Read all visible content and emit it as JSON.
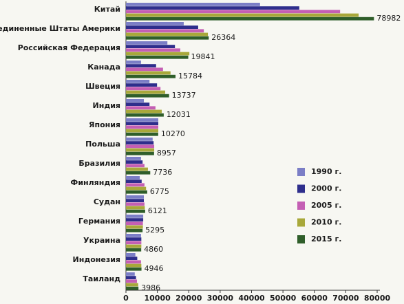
{
  "chart_data": {
    "type": "bar",
    "orientation": "horizontal",
    "categories": [
      "Китай",
      "Соединенные Штаты Америки",
      "Российская Федерация",
      "Канада",
      "Швеция",
      "Индия",
      "Япония",
      "Польша",
      "Бразилия",
      "Финляндия",
      "Судан",
      "Германия",
      "Украина",
      "Индонезия",
      "Таиланд"
    ],
    "series": [
      {
        "name": "1990 г.",
        "color": "#7b7ec6",
        "values": [
          42700,
          18400,
          13200,
          4800,
          7500,
          5700,
          10300,
          8500,
          4800,
          4400,
          5700,
          5500,
          4800,
          3000,
          2800
        ]
      },
      {
        "name": "2000 г.",
        "color": "#2e2e8c",
        "values": [
          55200,
          23000,
          15600,
          9600,
          9900,
          7500,
          10300,
          8800,
          5300,
          5000,
          5700,
          5500,
          4900,
          3600,
          3200
        ]
      },
      {
        "name": "2005 г.",
        "color": "#c45fb4",
        "values": [
          68200,
          24800,
          17300,
          11800,
          11000,
          9400,
          10300,
          9000,
          5900,
          5900,
          5900,
          5400,
          4900,
          4800,
          3500
        ]
      },
      {
        "name": "2010 г.",
        "color": "#a8a83a",
        "values": [
          74100,
          26100,
          20200,
          14200,
          12500,
          11400,
          10300,
          9000,
          7000,
          6400,
          6000,
          5400,
          4900,
          4900,
          3900
        ]
      },
      {
        "name": "2015 г.",
        "color": "#2f5e2a",
        "values": [
          78982,
          26364,
          19841,
          15784,
          13737,
          12031,
          10270,
          8957,
          7736,
          6775,
          6121,
          5295,
          4860,
          4946,
          3986
        ]
      }
    ],
    "data_labels_series": 4,
    "xlim": [
      0,
      80000
    ],
    "xticks": [
      0,
      10000,
      20000,
      30000,
      40000,
      50000,
      60000,
      70000,
      80000
    ],
    "legend": "right"
  }
}
